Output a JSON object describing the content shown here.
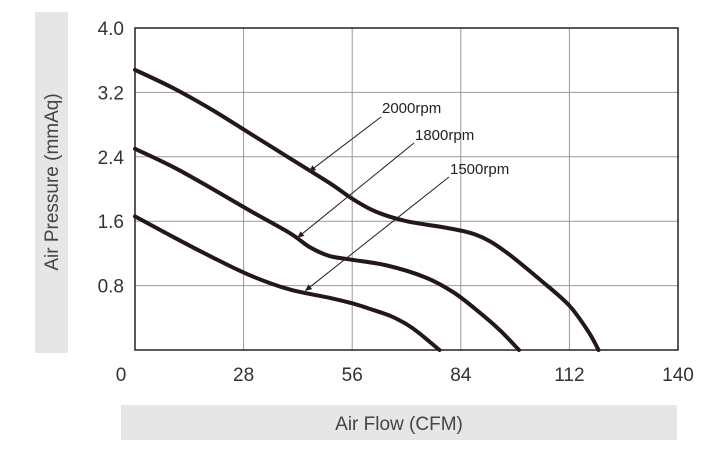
{
  "chart_data": {
    "type": "line",
    "title": "",
    "xlabel": "Air Flow (CFM)",
    "ylabel": "Air Pressure (mmAq)",
    "xlim": [
      0,
      140
    ],
    "ylim": [
      0,
      4.0
    ],
    "x_ticks": [
      0,
      28,
      56,
      84,
      112,
      140
    ],
    "y_ticks": [
      0.8,
      1.6,
      2.4,
      3.2,
      4.0
    ],
    "y_tick_labels": [
      "0.8",
      "1.6",
      "2.4",
      "3.2",
      "4.0"
    ],
    "x_tick_labels": [
      "0",
      "28",
      "56",
      "84",
      "112",
      "140"
    ],
    "grid": true,
    "line_color": "#231815",
    "grid_color": "#999999",
    "label_panel_color": "#e6e6e6",
    "series": [
      {
        "name": "2000rpm",
        "x": [
          0,
          10,
          20,
          30,
          40,
          50,
          56,
          62,
          70,
          80,
          88,
          95,
          105,
          112,
          117,
          119.5
        ],
        "y": [
          3.48,
          3.25,
          2.98,
          2.68,
          2.38,
          2.08,
          1.88,
          1.72,
          1.6,
          1.52,
          1.43,
          1.24,
          0.85,
          0.55,
          0.22,
          0.0
        ]
      },
      {
        "name": "1800rpm",
        "x": [
          0,
          10,
          20,
          30,
          40,
          45,
          50,
          56,
          65,
          75,
          82,
          88,
          94,
          99
        ],
        "y": [
          2.5,
          2.27,
          2.0,
          1.72,
          1.45,
          1.28,
          1.17,
          1.12,
          1.05,
          0.9,
          0.72,
          0.5,
          0.25,
          0.0
        ]
      },
      {
        "name": "1500rpm",
        "x": [
          0,
          10,
          20,
          30,
          40,
          50,
          56,
          60,
          66,
          70,
          73,
          76,
          78.5
        ],
        "y": [
          1.66,
          1.4,
          1.15,
          0.92,
          0.75,
          0.65,
          0.58,
          0.52,
          0.42,
          0.32,
          0.22,
          0.1,
          0.0
        ]
      }
    ],
    "annotations": [
      {
        "text": "2000rpm",
        "series": "2000rpm",
        "point_x": 45,
        "point_y": 2.22
      },
      {
        "text": "1800rpm",
        "series": "1800rpm",
        "point_x": 42,
        "point_y": 1.4
      },
      {
        "text": "1500rpm",
        "series": "1500rpm",
        "point_x": 44,
        "point_y": 0.74
      }
    ]
  }
}
